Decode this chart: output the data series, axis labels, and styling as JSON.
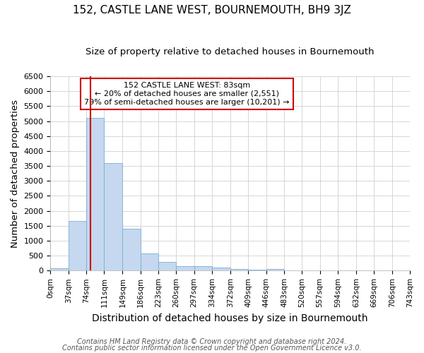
{
  "title": "152, CASTLE LANE WEST, BOURNEMOUTH, BH9 3JZ",
  "subtitle": "Size of property relative to detached houses in Bournemouth",
  "xlabel": "Distribution of detached houses by size in Bournemouth",
  "ylabel": "Number of detached properties",
  "footnote1": "Contains HM Land Registry data © Crown copyright and database right 2024.",
  "footnote2": "Contains public sector information licensed under the Open Government Licence v3.0.",
  "annotation_title": "152 CASTLE LANE WEST: 83sqm",
  "annotation_line1": "← 20% of detached houses are smaller (2,551)",
  "annotation_line2": "79% of semi-detached houses are larger (10,201) →",
  "property_size": 83,
  "bin_edges": [
    0,
    37,
    74,
    111,
    149,
    186,
    223,
    260,
    297,
    334,
    372,
    409,
    446,
    483,
    520,
    557,
    594,
    632,
    669,
    706,
    743
  ],
  "bin_labels": [
    "0sqm",
    "37sqm",
    "74sqm",
    "111sqm",
    "149sqm",
    "186sqm",
    "223sqm",
    "260sqm",
    "297sqm",
    "334sqm",
    "372sqm",
    "409sqm",
    "446sqm",
    "483sqm",
    "520sqm",
    "557sqm",
    "594sqm",
    "632sqm",
    "669sqm",
    "706sqm",
    "743sqm"
  ],
  "bar_heights": [
    75,
    1650,
    5100,
    3600,
    1400,
    580,
    300,
    155,
    150,
    100,
    55,
    40,
    55,
    0,
    0,
    0,
    0,
    0,
    0,
    0
  ],
  "bar_color": "#c5d8ef",
  "bar_edgecolor": "#7aadd4",
  "grid_color": "#d0d0d0",
  "annotation_box_edgecolor": "#cc0000",
  "redline_color": "#cc0000",
  "background_color": "#ffffff",
  "ylim": [
    0,
    6500
  ],
  "title_fontsize": 11,
  "subtitle_fontsize": 9.5,
  "axis_label_fontsize": 9.5,
  "tick_fontsize": 7.5,
  "annotation_fontsize": 8,
  "footnote_fontsize": 7
}
